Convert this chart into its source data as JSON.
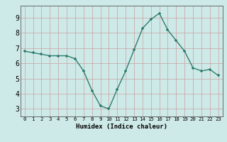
{
  "x": [
    0,
    1,
    2,
    3,
    4,
    5,
    6,
    7,
    8,
    9,
    10,
    11,
    12,
    13,
    14,
    15,
    16,
    17,
    18,
    19,
    20,
    21,
    22,
    23
  ],
  "y": [
    6.8,
    6.7,
    6.6,
    6.5,
    6.5,
    6.5,
    6.3,
    5.5,
    4.2,
    3.2,
    3.0,
    4.3,
    5.5,
    6.9,
    8.3,
    8.9,
    9.3,
    8.2,
    7.5,
    6.8,
    5.7,
    5.5,
    5.6,
    5.2
  ],
  "xlabel": "Humidex (Indice chaleur)",
  "ylim": [
    2.5,
    9.8
  ],
  "xlim": [
    -0.5,
    23.5
  ],
  "yticks": [
    3,
    4,
    5,
    6,
    7,
    8,
    9
  ],
  "xticks": [
    0,
    1,
    2,
    3,
    4,
    5,
    6,
    7,
    8,
    9,
    10,
    11,
    12,
    13,
    14,
    15,
    16,
    17,
    18,
    19,
    20,
    21,
    22,
    23
  ],
  "xtick_labels": [
    "0",
    "1",
    "2",
    "3",
    "4",
    "5",
    "6",
    "7",
    "8",
    "9",
    "10",
    "11",
    "12",
    "13",
    "14",
    "15",
    "16",
    "17",
    "18",
    "19",
    "20",
    "21",
    "22",
    "23"
  ],
  "line_color": "#2e7d6e",
  "marker_color": "#2e7d6e",
  "bg_color": "#ceeae8",
  "grid_color": "#c8a0a0",
  "axes_bg": "#ceeae8",
  "xlabel_fontsize": 6.5,
  "ytick_fontsize": 7.0,
  "xtick_fontsize": 5.2
}
